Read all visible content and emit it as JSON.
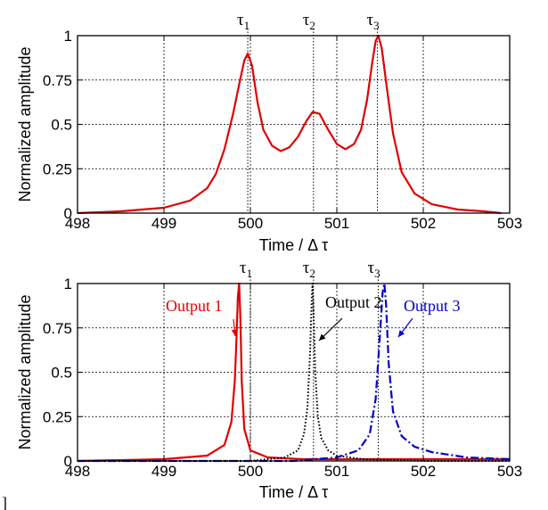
{
  "chart_data": [
    {
      "type": "line",
      "xlabel": "Time / Δ τ",
      "ylabel": "Normalized amplitude",
      "xlim": [
        498,
        503
      ],
      "ylim": [
        0,
        1
      ],
      "x_ticks": [
        "498",
        "499",
        "500",
        "501",
        "502",
        "503"
      ],
      "y_ticks": [
        "0",
        "0.25",
        "0.5",
        "0.75",
        "1"
      ],
      "grid": true,
      "markers": [
        {
          "label": "τ",
          "sub": "1",
          "x": 499.97
        },
        {
          "label": "τ",
          "sub": "2",
          "x": 500.73
        },
        {
          "label": "τ",
          "sub": "3",
          "x": 501.47
        }
      ],
      "series": [
        {
          "color": "#e00000",
          "style": "solid",
          "x": [
            498.0,
            498.5,
            499.0,
            499.3,
            499.5,
            499.6,
            499.7,
            499.8,
            499.88,
            499.93,
            499.97,
            500.02,
            500.08,
            500.15,
            500.25,
            500.35,
            500.45,
            500.55,
            500.65,
            500.72,
            500.8,
            500.9,
            501.0,
            501.1,
            501.2,
            501.28,
            501.35,
            501.41,
            501.45,
            501.48,
            501.52,
            501.58,
            501.65,
            501.75,
            501.9,
            502.1,
            502.4,
            502.7,
            502.9
          ],
          "y": [
            0.0,
            0.01,
            0.03,
            0.07,
            0.14,
            0.22,
            0.36,
            0.56,
            0.75,
            0.86,
            0.9,
            0.83,
            0.63,
            0.47,
            0.38,
            0.35,
            0.37,
            0.43,
            0.52,
            0.57,
            0.56,
            0.47,
            0.39,
            0.36,
            0.39,
            0.47,
            0.64,
            0.85,
            0.97,
            1.0,
            0.93,
            0.7,
            0.45,
            0.23,
            0.11,
            0.05,
            0.02,
            0.01,
            0.0
          ]
        }
      ]
    },
    {
      "type": "line",
      "xlabel": "Time / Δ τ",
      "ylabel": "Normalized amplitude",
      "xlim": [
        498,
        503
      ],
      "ylim": [
        0,
        1
      ],
      "x_ticks": [
        "498",
        "499",
        "500",
        "501",
        "502",
        "503"
      ],
      "y_ticks": [
        "0",
        "0.25",
        "0.5",
        "0.75",
        "1"
      ],
      "grid": true,
      "markers": [
        {
          "label": "τ",
          "sub": "1",
          "x": 500.0
        },
        {
          "label": "τ",
          "sub": "2",
          "x": 500.73
        },
        {
          "label": "τ",
          "sub": "3",
          "x": 501.48
        }
      ],
      "annotations": [
        {
          "text": "Output 1",
          "color": "#e00000"
        },
        {
          "text": "Output 2",
          "color": "#000000"
        },
        {
          "text": "Output 3",
          "color": "#0000cc"
        }
      ],
      "series": [
        {
          "name": "Output 1",
          "color": "#e00000",
          "style": "solid",
          "x": [
            498.0,
            499.0,
            499.5,
            499.7,
            499.78,
            499.82,
            499.84,
            499.855,
            499.87,
            499.885,
            499.9,
            499.93,
            500.0,
            500.2,
            500.6,
            501.0,
            502.0,
            503.0
          ],
          "y": [
            0.0,
            0.01,
            0.03,
            0.09,
            0.22,
            0.45,
            0.7,
            0.92,
            1.0,
            0.8,
            0.45,
            0.18,
            0.06,
            0.02,
            0.01,
            0.01,
            0.01,
            0.01
          ]
        },
        {
          "name": "Output 2",
          "color": "#000000",
          "style": "dotted",
          "x": [
            498.0,
            500.0,
            500.4,
            500.55,
            500.62,
            500.66,
            500.69,
            500.71,
            500.72,
            500.73,
            500.75,
            500.78,
            500.82,
            500.9,
            501.0,
            501.3,
            502.0,
            503.0
          ],
          "y": [
            0.0,
            0.0,
            0.02,
            0.06,
            0.15,
            0.3,
            0.6,
            0.92,
            1.0,
            0.85,
            0.5,
            0.25,
            0.13,
            0.06,
            0.03,
            0.01,
            0.0,
            0.0
          ]
        },
        {
          "name": "Output 3",
          "color": "#0000cc",
          "style": "dashdot",
          "x": [
            498.0,
            500.5,
            501.0,
            501.25,
            501.38,
            501.45,
            501.5,
            501.53,
            501.55,
            501.57,
            501.6,
            501.65,
            501.75,
            501.9,
            502.1,
            502.5,
            503.0
          ],
          "y": [
            0.0,
            0.0,
            0.02,
            0.06,
            0.15,
            0.35,
            0.72,
            0.95,
            1.0,
            0.88,
            0.55,
            0.28,
            0.14,
            0.08,
            0.05,
            0.02,
            0.01
          ]
        }
      ]
    }
  ],
  "stray_mark": "]"
}
